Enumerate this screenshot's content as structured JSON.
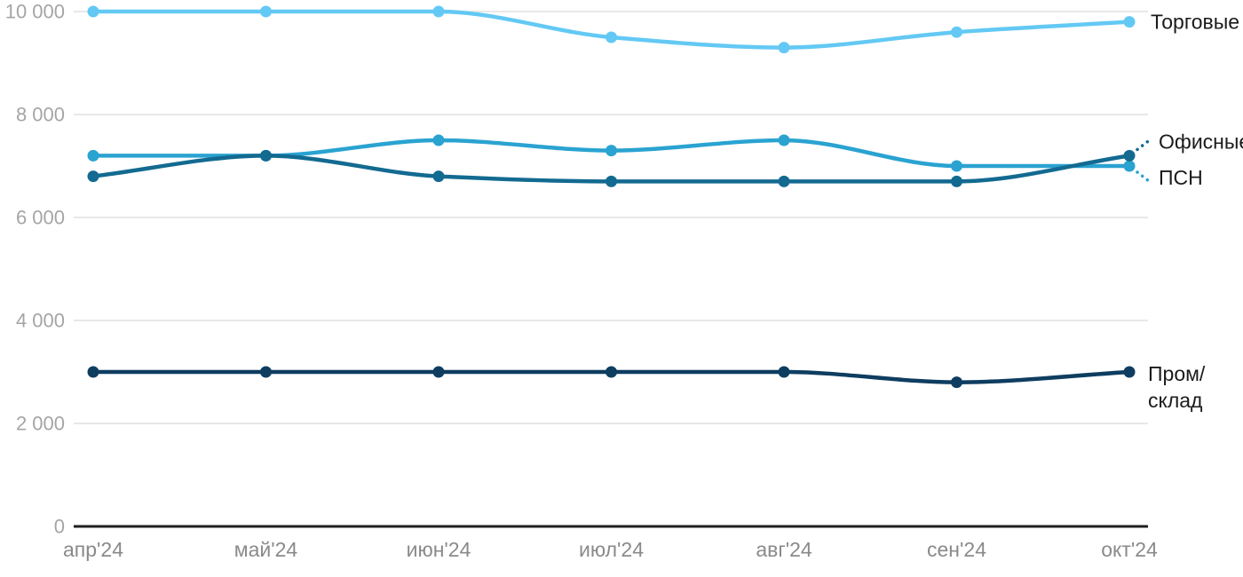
{
  "chart_data": {
    "type": "line",
    "title": "",
    "xlabel": "",
    "ylabel": "",
    "x": [
      "апр'24",
      "май'24",
      "июн'24",
      "июл'24",
      "авг'24",
      "сен'24",
      "окт'24"
    ],
    "series": [
      {
        "name": "Торговые",
        "color": "#63c9f4",
        "values": [
          10000,
          10000,
          10000,
          9500,
          9300,
          9600,
          9800
        ]
      },
      {
        "name": "Офисные",
        "color": "#136a91",
        "values": [
          6800,
          7200,
          6800,
          6700,
          6700,
          6700,
          7200
        ]
      },
      {
        "name": "ПСН",
        "color": "#2aa3d1",
        "values": [
          7200,
          7200,
          7500,
          7300,
          7500,
          7000,
          7000
        ]
      },
      {
        "name": "Пром/склад",
        "color": "#0e3d60",
        "values": [
          3000,
          3000,
          3000,
          3000,
          3000,
          2800,
          3000
        ]
      }
    ],
    "ylim": [
      0,
      10000
    ],
    "y_ticks": [
      {
        "value": 0,
        "label": "0"
      },
      {
        "value": 2000,
        "label": "2 000"
      },
      {
        "value": 4000,
        "label": "4 000"
      },
      {
        "value": 6000,
        "label": "6 000"
      },
      {
        "value": 8000,
        "label": "8 000"
      },
      {
        "value": 10000,
        "label": "10 000"
      }
    ],
    "grid": "horizontal",
    "legend_position": "right-end-labels",
    "curve": "smooth"
  },
  "colors": {
    "background": "#ffffff",
    "gridline": "#e8e8e8",
    "axis_line": "#1f1f1f",
    "y_tick_text": "#a5a5a5",
    "x_tick_text": "#8a8a8a",
    "series_label_text": "#1b1b1b"
  }
}
